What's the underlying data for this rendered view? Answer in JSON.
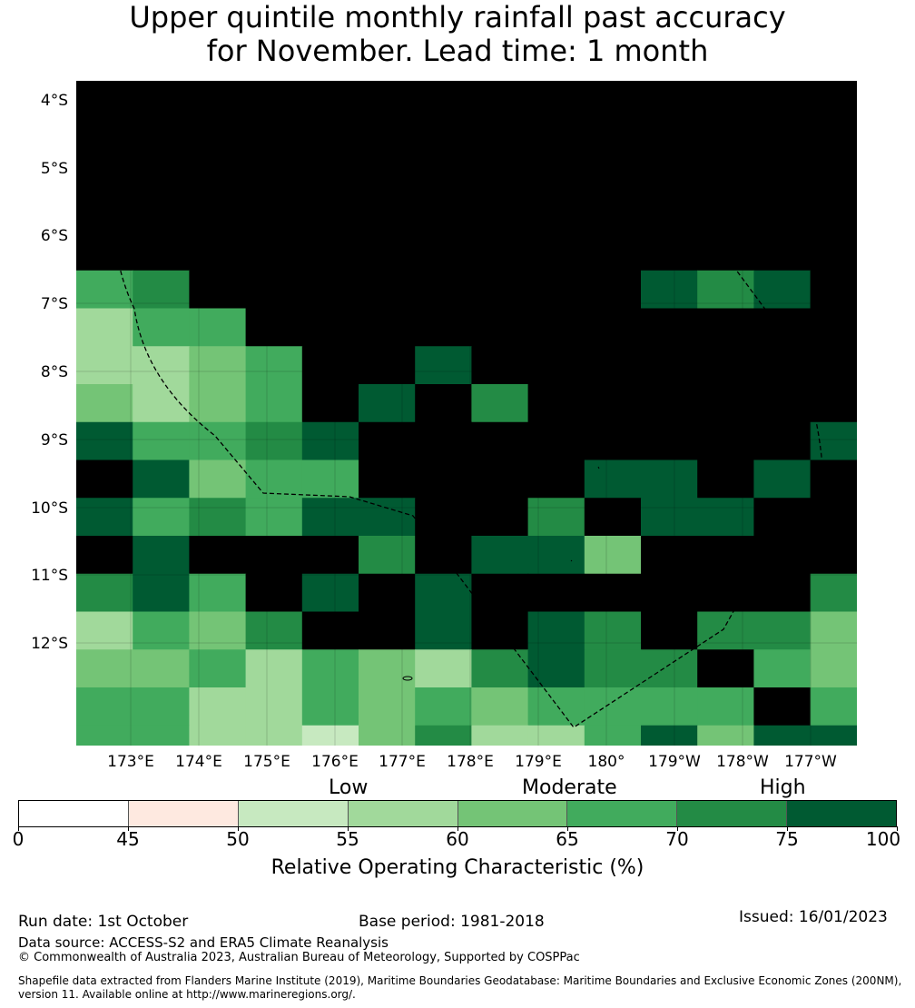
{
  "title": {
    "line1": "Upper quintile monthly rainfall past accuracy",
    "line2": "for November. Lead time: 1 month"
  },
  "map": {
    "lat_labels": [
      "4°S",
      "5°S",
      "6°S",
      "7°S",
      "8°S",
      "9°S",
      "10°S",
      "11°S",
      "12°S"
    ],
    "lon_labels": [
      "173°E",
      "174°E",
      "175°E",
      "176°E",
      "177°E",
      "178°E",
      "179°E",
      "180°",
      "179°W",
      "178°W",
      "177°W"
    ],
    "grid_rows": [
      [
        8,
        8,
        8,
        8,
        8,
        8,
        8,
        8,
        8,
        8,
        8,
        8,
        8,
        8
      ],
      [
        8,
        8,
        8,
        8,
        8,
        8,
        8,
        8,
        8,
        8,
        8,
        8,
        8,
        8
      ],
      [
        8,
        8,
        8,
        8,
        8,
        8,
        8,
        8,
        8,
        8,
        8,
        8,
        8,
        8
      ],
      [
        8,
        8,
        8,
        8,
        8,
        8,
        8,
        8,
        8,
        8,
        8,
        8,
        8,
        8
      ],
      [
        8,
        8,
        8,
        8,
        8,
        8,
        8,
        8,
        8,
        8,
        8,
        8,
        8,
        8
      ],
      [
        5,
        6,
        8,
        8,
        8,
        8,
        8,
        8,
        8,
        8,
        7,
        6,
        7,
        8
      ],
      [
        3,
        5,
        5,
        8,
        8,
        8,
        8,
        8,
        8,
        8,
        8,
        8,
        8,
        8
      ],
      [
        3,
        3,
        4,
        5,
        8,
        8,
        7,
        8,
        8,
        8,
        8,
        8,
        8,
        8
      ],
      [
        4,
        3,
        4,
        5,
        8,
        7,
        8,
        6,
        8,
        8,
        8,
        8,
        8,
        8
      ],
      [
        7,
        5,
        5,
        6,
        7,
        8,
        8,
        8,
        8,
        8,
        8,
        8,
        8,
        7
      ],
      [
        8,
        7,
        4,
        5,
        5,
        8,
        8,
        8,
        8,
        7,
        7,
        8,
        7,
        8
      ],
      [
        7,
        5,
        6,
        5,
        7,
        7,
        8,
        8,
        6,
        8,
        7,
        7,
        8,
        8
      ],
      [
        8,
        7,
        8,
        8,
        8,
        6,
        8,
        7,
        7,
        4,
        8,
        8,
        8,
        8
      ],
      [
        6,
        7,
        5,
        8,
        7,
        8,
        7,
        8,
        8,
        8,
        8,
        8,
        8,
        6
      ],
      [
        3,
        5,
        4,
        6,
        8,
        8,
        7,
        8,
        7,
        6,
        8,
        6,
        6,
        4
      ],
      [
        4,
        4,
        5,
        3,
        5,
        4,
        3,
        6,
        7,
        6,
        6,
        8,
        5,
        4
      ],
      [
        5,
        5,
        3,
        3,
        5,
        4,
        5,
        4,
        5,
        5,
        5,
        5,
        8,
        5
      ],
      [
        5,
        5,
        3,
        3,
        2,
        4,
        6,
        3,
        3,
        5,
        7,
        4,
        7,
        7
      ]
    ],
    "eez_boundary_label": ""
  },
  "legend": {
    "category_low": "Low",
    "category_moderate": "Moderate",
    "category_high": "High",
    "colors": [
      "#ffffff",
      "#fee9e0",
      "#c7e9c0",
      "#a1d99b",
      "#74c476",
      "#41ab5d",
      "#238b45",
      "#005a32"
    ],
    "ticks": [
      "0",
      "45",
      "50",
      "55",
      "60",
      "65",
      "70",
      "75",
      "100"
    ],
    "label": "Relative Operating Characteristic (%)"
  },
  "footer": {
    "run_date": "Run date: 1st October",
    "base_period": "Base period: 1981-2018",
    "issued": "Issued: 16/01/2023",
    "data_source": "Data source: ACCESS-S2 and ERA5 Climate Reanalysis",
    "copyright": "© Commonwealth of Australia 2023, Australian Bureau of Meteorology, Supported by COSPPac",
    "shapefile_note": "Shapefile data extracted from Flanders Marine Institute (2019), Maritime Boundaries Geodatabase: Maritime Boundaries and Exclusive Economic Zones (200NM), version 11. Available online at http://www.marineregions.org/."
  }
}
